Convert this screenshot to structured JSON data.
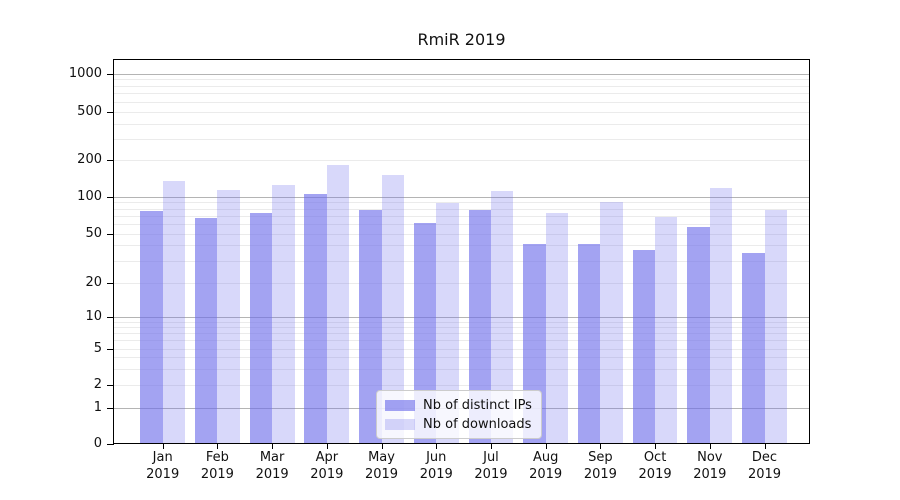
{
  "figure": {
    "title": "RmiR 2019"
  },
  "chart_data": {
    "type": "bar",
    "title": "RmiR 2019",
    "categories": [
      "Jan 2019",
      "Feb 2019",
      "Mar 2019",
      "Apr 2019",
      "May 2019",
      "Jun 2019",
      "Jul 2019",
      "Aug 2019",
      "Sep 2019",
      "Oct 2019",
      "Nov 2019",
      "Dec 2019"
    ],
    "series": [
      {
        "name": "Nb of distinct IPs",
        "color": "rgba(110,110,235,0.63)",
        "values": [
          76,
          67,
          73,
          106,
          78,
          61,
          78,
          41,
          41,
          37,
          56,
          35
        ]
      },
      {
        "name": "Nb of downloads",
        "color": "rgba(110,110,235,0.27)",
        "values": [
          135,
          114,
          125,
          182,
          151,
          89,
          112,
          73,
          90,
          68,
          117,
          78
        ]
      }
    ],
    "xlabel": "",
    "ylabel": "",
    "yscale": "log-like (0 at baseline)",
    "ylim": [
      0,
      1400
    ],
    "yticks": [
      0,
      1,
      2,
      5,
      10,
      20,
      50,
      100,
      200,
      500,
      1000
    ],
    "major_gridlines": [
      1,
      10,
      100,
      1000
    ],
    "minor_gridlines": [
      2,
      3,
      4,
      5,
      6,
      7,
      8,
      9,
      20,
      30,
      40,
      50,
      60,
      70,
      80,
      90,
      200,
      300,
      400,
      500,
      600,
      700,
      800,
      900
    ],
    "grid": true,
    "legend_position": "lower center inside axes"
  },
  "colors": {
    "bar_dark": "rgba(110,110,235,0.63)",
    "bar_light": "rgba(110,110,235,0.27)",
    "grid_minor": "#ebebeb",
    "grid_major": "#b4b4b4",
    "spine": "#000000",
    "text": "#111111",
    "legend_bg": "rgba(255,255,255,0.8)",
    "legend_border": "#cccccc"
  }
}
